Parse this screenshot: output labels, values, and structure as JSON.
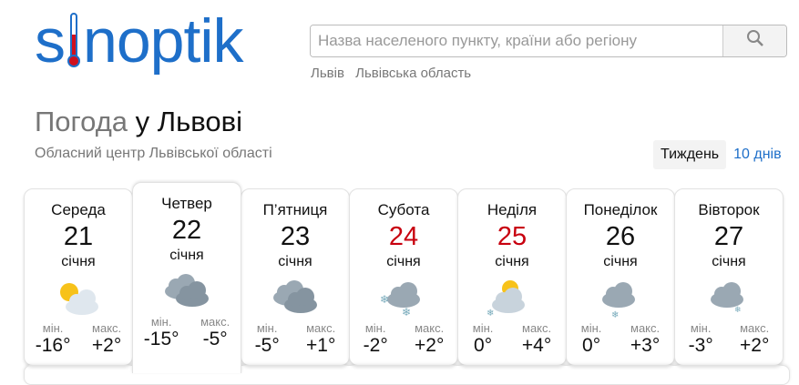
{
  "logo": "sinoptik",
  "search": {
    "placeholder": "Назва населеного пункту, країни або регіону"
  },
  "breadcrumbs": [
    "Львів",
    "Львівська область"
  ],
  "title": {
    "prefix": "Погода",
    "city": "у Львові"
  },
  "subtitle": "Обласний центр Львівської області",
  "view_tabs": [
    {
      "label": "Тиждень",
      "active": true
    },
    {
      "label": "10 днів",
      "active": false
    }
  ],
  "labels": {
    "min": "мін.",
    "max": "макс."
  },
  "colors": {
    "brand": "#1e6fc9",
    "weekend": "#c8000f"
  },
  "days": [
    {
      "name": "Середа",
      "date": "21",
      "month": "січня",
      "icon": "sun-cloud-icon",
      "min": "-16°",
      "max": "+2°",
      "weekend": false
    },
    {
      "name": "Четвер",
      "date": "22",
      "month": "січня",
      "icon": "overcast-icon",
      "min": "-15°",
      "max": "-5°",
      "weekend": false,
      "active": true
    },
    {
      "name": "П’ятниця",
      "date": "23",
      "month": "січня",
      "icon": "overcast-icon",
      "min": "-5°",
      "max": "+1°",
      "weekend": false
    },
    {
      "name": "Субота",
      "date": "24",
      "month": "січня",
      "icon": "snow-icon",
      "min": "-2°",
      "max": "+2°",
      "weekend": true
    },
    {
      "name": "Неділя",
      "date": "25",
      "month": "січня",
      "icon": "sun-cloud-snow-icon",
      "min": "0°",
      "max": "+4°",
      "weekend": true
    },
    {
      "name": "Понеділок",
      "date": "26",
      "month": "січня",
      "icon": "cloud-rain-snow-icon",
      "min": "0°",
      "max": "+3°",
      "weekend": false
    },
    {
      "name": "Вівторок",
      "date": "27",
      "month": "січня",
      "icon": "cloud-light-snow-icon",
      "min": "-3°",
      "max": "+2°",
      "weekend": false
    }
  ]
}
